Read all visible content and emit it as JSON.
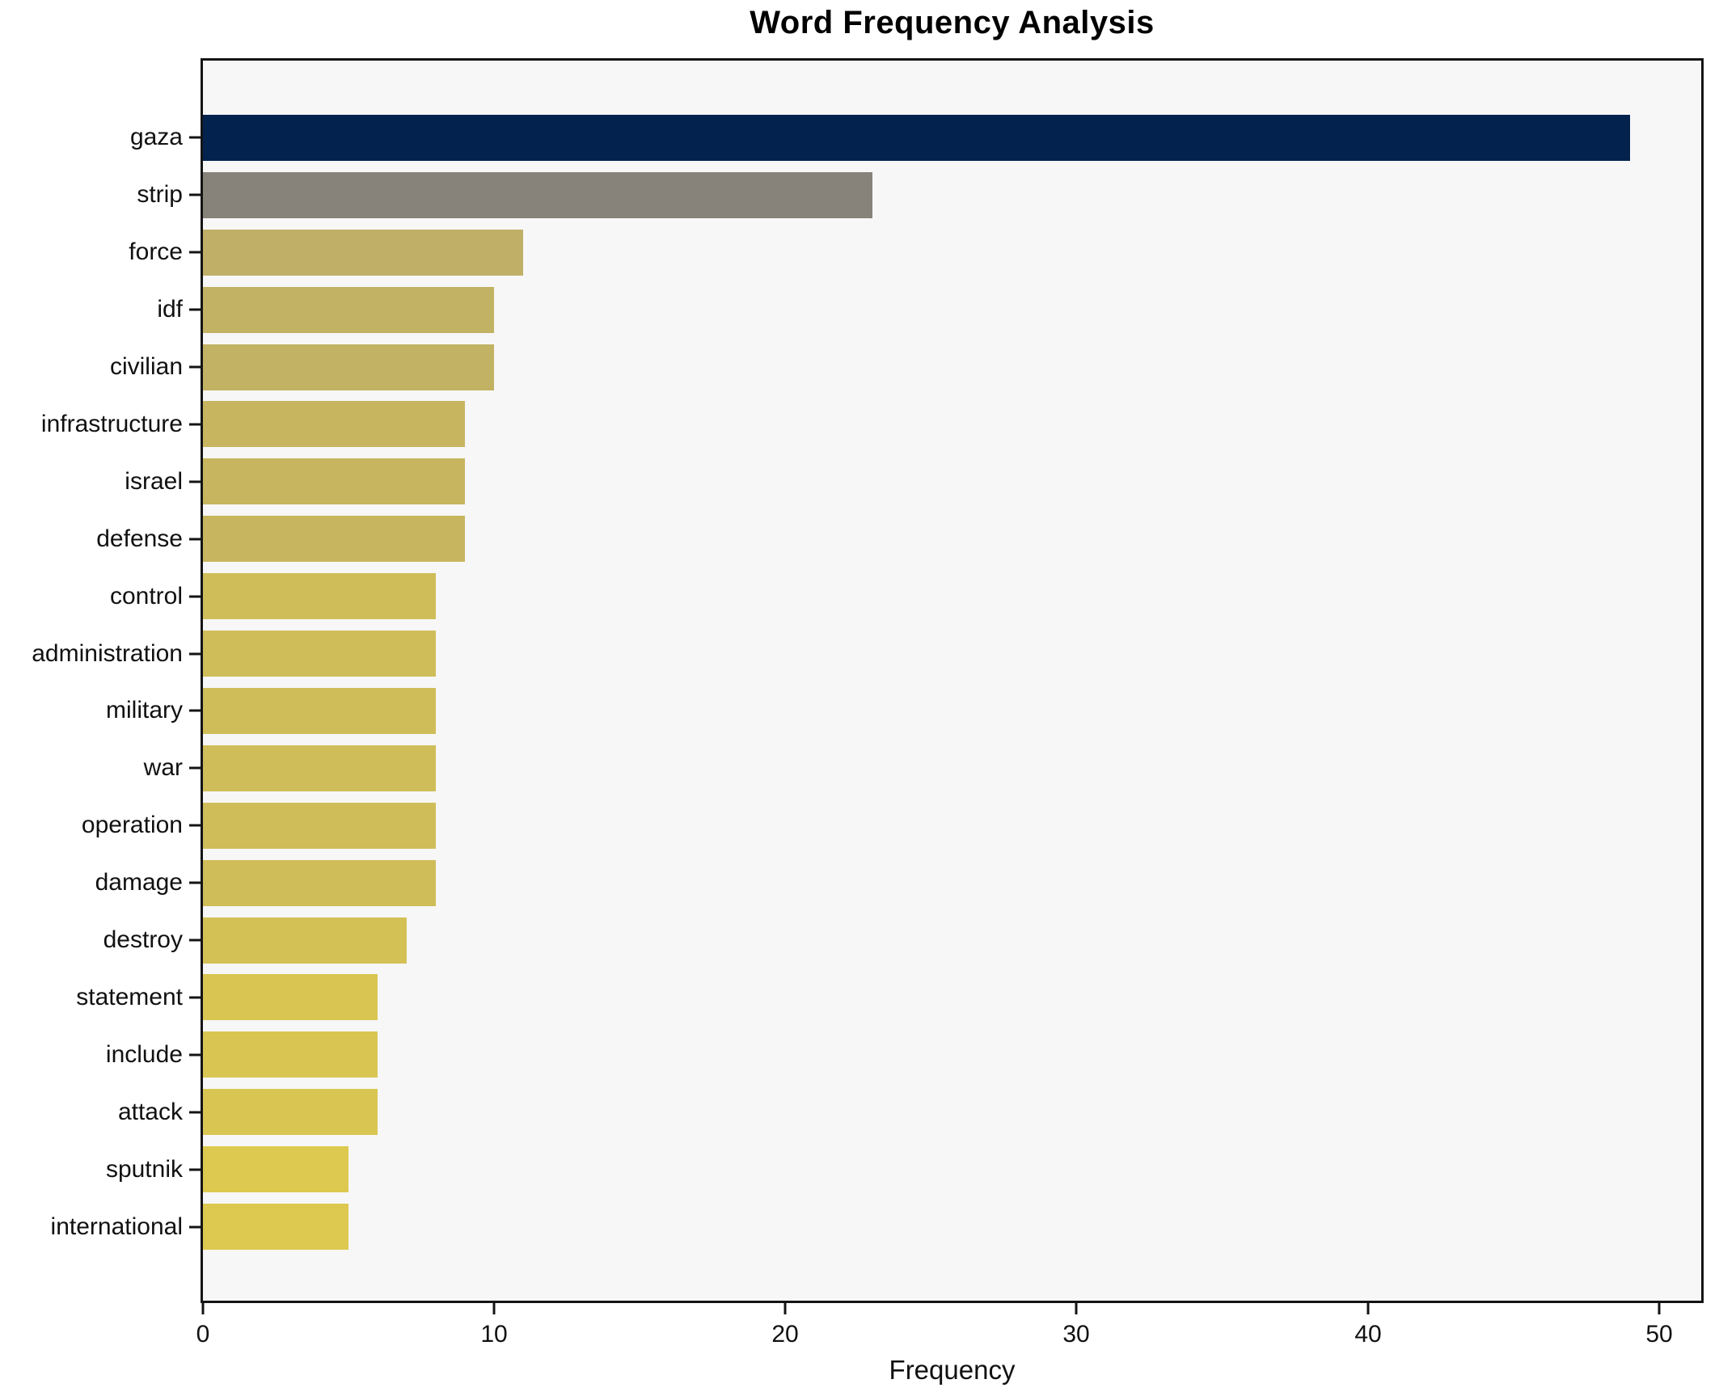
{
  "chart_data": {
    "type": "bar",
    "orientation": "horizontal",
    "title": "Word Frequency Analysis",
    "xlabel": "Frequency",
    "ylabel": "",
    "categories": [
      "gaza",
      "strip",
      "force",
      "idf",
      "civilian",
      "infrastructure",
      "israel",
      "defense",
      "control",
      "administration",
      "military",
      "war",
      "operation",
      "damage",
      "destroy",
      "statement",
      "include",
      "attack",
      "sputnik",
      "international"
    ],
    "values": [
      49,
      23,
      11,
      10,
      10,
      9,
      9,
      9,
      8,
      8,
      8,
      8,
      8,
      8,
      7,
      6,
      6,
      6,
      5,
      5
    ],
    "bar_colors": [
      "#03234e",
      "#87837a",
      "#c0b067",
      "#c2b263",
      "#c2b263",
      "#c7b65f",
      "#c7b65f",
      "#c7b65f",
      "#cfbd59",
      "#cfbd59",
      "#cfbd59",
      "#cfbd59",
      "#cfbd59",
      "#cfbd59",
      "#d4c156",
      "#d9c652",
      "#d9c652",
      "#d9c652",
      "#ddc94f",
      "#ddc94f"
    ],
    "xlim": [
      0,
      51.45
    ],
    "xticks": [
      0,
      10,
      20,
      30,
      40,
      50
    ],
    "grid": false,
    "legend": false,
    "plot_bg": "#f7f7f8",
    "figure_bg": "#ffffff",
    "spine_color": "#141414"
  }
}
